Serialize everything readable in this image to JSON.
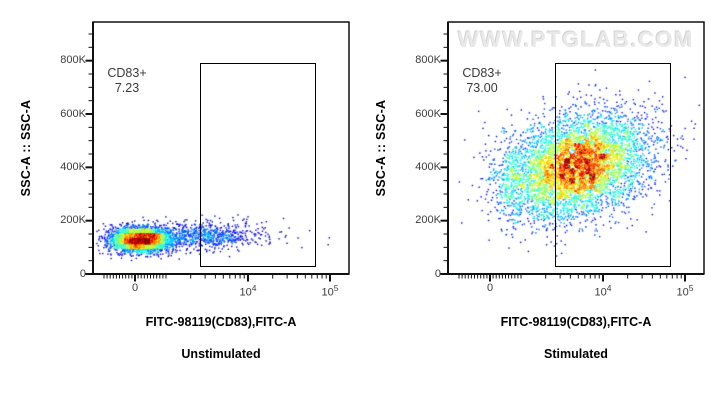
{
  "watermark": "WWW.PTGLAB.COM",
  "colors": {
    "frame": "#000000",
    "tick": "#111111",
    "tick_label": "#3d3d3d",
    "gate_border": "#000000",
    "gate_label_text": "#3a3a3a",
    "watermark_color": "#e9e9e9",
    "dot_colormap": "jet"
  },
  "chart_data": [
    {
      "type": "scatter",
      "subtype": "flow-cytometry-pseudocolor-dot-plot",
      "title": "Unstimulated",
      "xlabel": "FITC-98119(CD83),FITC-A",
      "ylabel": "SSC-A :: SSC-A",
      "x_scale": "biexponential",
      "y_scale": "linear",
      "ylim": [
        0,
        945000
      ],
      "xlim_log_max": 100000,
      "x_ticks": [
        {
          "value": 0,
          "label": "0",
          "sup": ""
        },
        {
          "value": 10000,
          "label": "10",
          "sup": "4"
        },
        {
          "value": 100000,
          "label": "10",
          "sup": "5"
        }
      ],
      "y_ticks": [
        {
          "value": 0,
          "label": "0"
        },
        {
          "value": 200000,
          "label": "200K"
        },
        {
          "value": 400000,
          "label": "400K"
        },
        {
          "value": 600000,
          "label": "600K"
        },
        {
          "value": 800000,
          "label": "800K"
        }
      ],
      "y_minor_step": 50000,
      "gate": {
        "label": "CD83+",
        "value": "7.23",
        "x_min": 2600,
        "x_max": 70000,
        "y_min": 20000,
        "y_max": 790000
      },
      "clusters": [
        {
          "n": 3400,
          "x_dist": "linear",
          "x_mean": 150,
          "x_sd": 480,
          "y_mean": 131000,
          "y_sd": 23000
        },
        {
          "n": 700,
          "x_dist": "log",
          "x_log_mean": 3.45,
          "x_log_sd": 0.32,
          "y_mean": 145000,
          "y_sd": 26000
        },
        {
          "n": 45,
          "x_dist": "log",
          "x_log_mean": 4.05,
          "x_log_sd": 0.4,
          "y_mean": 158000,
          "y_sd": 30000
        }
      ]
    },
    {
      "type": "scatter",
      "subtype": "flow-cytometry-pseudocolor-dot-plot",
      "title": "Stimulated",
      "xlabel": "FITC-98119(CD83),FITC-A",
      "ylabel": "SSC-A :: SSC-A",
      "x_scale": "biexponential",
      "y_scale": "linear",
      "ylim": [
        0,
        945000
      ],
      "xlim_log_max": 100000,
      "x_ticks": [
        {
          "value": 0,
          "label": "0",
          "sup": ""
        },
        {
          "value": 10000,
          "label": "10",
          "sup": "4"
        },
        {
          "value": 100000,
          "label": "10",
          "sup": "5"
        }
      ],
      "y_ticks": [
        {
          "value": 0,
          "label": "0"
        },
        {
          "value": 200000,
          "label": "200K"
        },
        {
          "value": 400000,
          "label": "400K"
        },
        {
          "value": 600000,
          "label": "600K"
        },
        {
          "value": 800000,
          "label": "800K"
        }
      ],
      "y_minor_step": 50000,
      "gate": {
        "label": "CD83+",
        "value": "73.00",
        "x_min": 2600,
        "x_max": 70000,
        "y_min": 20000,
        "y_max": 790000
      },
      "clusters": [
        {
          "n": 5600,
          "x_dist": "log",
          "x_log_mean": 3.7,
          "x_log_sd": 0.42,
          "y_mean": 410000,
          "y_sd": 92000,
          "y_slope_per_decade": 65000
        },
        {
          "n": 350,
          "x_dist": "linear",
          "x_mean": 700,
          "x_sd": 600,
          "y_mean": 360000,
          "y_sd": 85000
        }
      ]
    }
  ]
}
